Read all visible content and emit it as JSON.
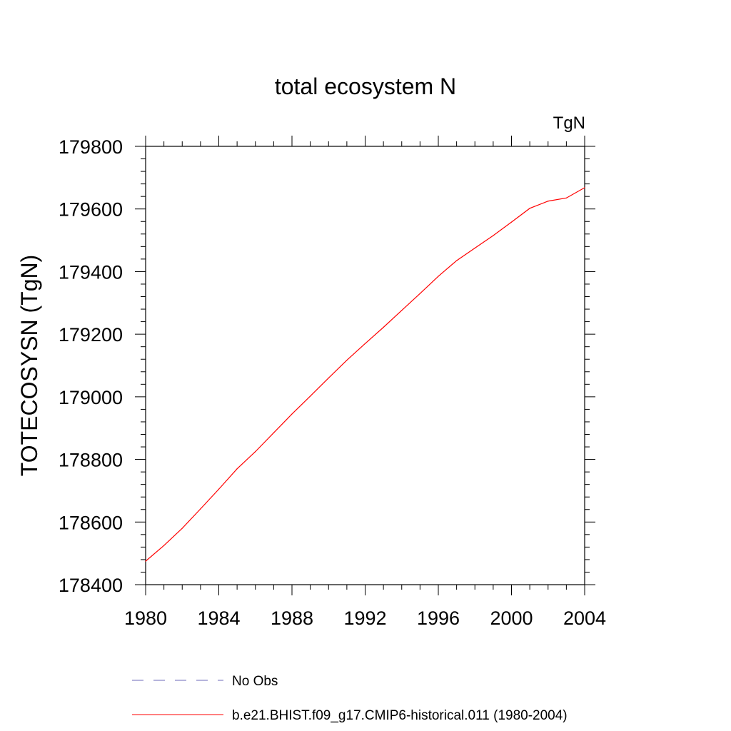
{
  "chart_data": {
    "type": "line",
    "title": "total ecosystem N",
    "units_label": "TgN",
    "xlabel": "",
    "ylabel": "TOTECOSYSN  (TgN)",
    "xlim": [
      1980,
      2004
    ],
    "ylim": [
      178400,
      179800
    ],
    "x_ticks": [
      1980,
      1984,
      1988,
      1992,
      1996,
      2000,
      2004
    ],
    "y_ticks": [
      178400,
      178600,
      178800,
      179000,
      179200,
      179400,
      179600,
      179800
    ],
    "grid": false,
    "legend_position": "bottom",
    "series": [
      {
        "name": "b.e21.BHIST.f09_g17.CMIP6-historical.011 (1980-2004)",
        "color": "#ff0000",
        "style": "solid",
        "x": [
          1980,
          1981,
          1982,
          1983,
          1984,
          1985,
          1986,
          1987,
          1988,
          1989,
          1990,
          1991,
          1992,
          1993,
          1994,
          1995,
          1996,
          1997,
          1998,
          1999,
          2000,
          2001,
          2002,
          2003,
          2004
        ],
        "y": [
          178475,
          178525,
          178580,
          178642,
          178705,
          178770,
          178825,
          178885,
          178945,
          179002,
          179060,
          179117,
          179170,
          179222,
          179276,
          179330,
          179385,
          179435,
          179475,
          179515,
          179558,
          179602,
          179625,
          179635,
          179668
        ]
      }
    ],
    "legend": [
      {
        "label": "No Obs",
        "color": "#8a86c8",
        "style": "dashed"
      },
      {
        "label": "b.e21.BHIST.f09_g17.CMIP6-historical.011 (1980-2004)",
        "color": "#ff0000",
        "style": "solid"
      }
    ]
  }
}
